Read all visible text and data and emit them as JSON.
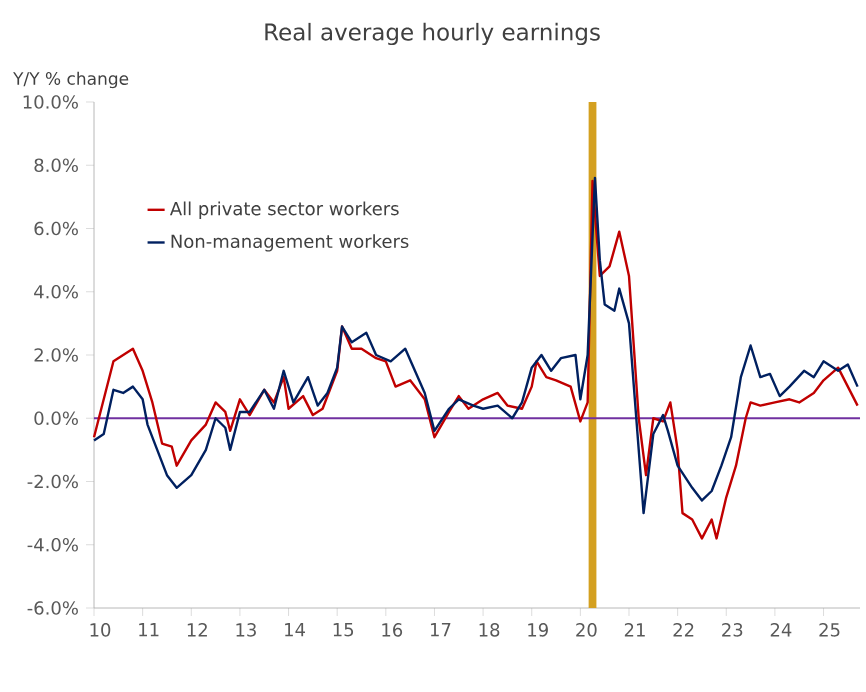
{
  "chart_data": {
    "type": "line",
    "title": "Real average hourly earnings",
    "ylabel": "Y/Y % change",
    "xlim": [
      10,
      25.75
    ],
    "xticks": [
      10,
      11,
      12,
      13,
      14,
      15,
      16,
      17,
      18,
      19,
      20,
      21,
      22,
      23,
      24,
      25
    ],
    "ylim": [
      -6,
      10
    ],
    "yticks": [
      {
        "value": -6,
        "label": "-6.0%"
      },
      {
        "value": -4,
        "label": "-4.0%"
      },
      {
        "value": -2,
        "label": "-2.0%"
      },
      {
        "value": 0,
        "label": "0.0%"
      },
      {
        "value": 2,
        "label": "2.0%"
      },
      {
        "value": 4,
        "label": "4.0%"
      },
      {
        "value": 6,
        "label": "6.0%"
      },
      {
        "value": 8,
        "label": "8.0%"
      },
      {
        "value": 10,
        "label": "10.0%"
      }
    ],
    "grid": false,
    "legend": "top left",
    "line_style": "solid",
    "ref_lines": [
      {
        "axis": "y",
        "value": 0,
        "color": "#7030a0"
      }
    ],
    "bands": [
      {
        "axis": "x",
        "from": 20.17,
        "to": 20.33,
        "color": "#d4a020"
      }
    ],
    "series": [
      {
        "name": "All private sector workers",
        "color": "#c00000",
        "x": [
          10.0,
          10.4,
          10.8,
          11.0,
          11.2,
          11.4,
          11.6,
          11.7,
          12.0,
          12.3,
          12.5,
          12.7,
          12.8,
          13.0,
          13.2,
          13.5,
          13.7,
          13.9,
          14.0,
          14.3,
          14.5,
          14.7,
          15.0,
          15.1,
          15.3,
          15.5,
          15.8,
          16.0,
          16.2,
          16.5,
          16.8,
          17.0,
          17.3,
          17.5,
          17.7,
          18.0,
          18.3,
          18.5,
          18.8,
          19.0,
          19.1,
          19.3,
          19.5,
          19.8,
          20.0,
          20.15,
          20.25,
          20.4,
          20.6,
          20.8,
          21.0,
          21.2,
          21.35,
          21.5,
          21.7,
          21.85,
          22.0,
          22.1,
          22.3,
          22.5,
          22.7,
          22.8,
          23.0,
          23.2,
          23.4,
          23.5,
          23.7,
          24.0,
          24.3,
          24.5,
          24.8,
          25.0,
          25.3,
          25.5,
          25.7
        ],
        "values": [
          -0.6,
          1.8,
          2.2,
          1.5,
          0.5,
          -0.8,
          -0.9,
          -1.5,
          -0.7,
          -0.2,
          0.5,
          0.2,
          -0.4,
          0.6,
          0.1,
          0.9,
          0.5,
          1.3,
          0.3,
          0.7,
          0.1,
          0.3,
          1.5,
          2.9,
          2.2,
          2.2,
          1.9,
          1.8,
          1.0,
          1.2,
          0.6,
          -0.6,
          0.2,
          0.7,
          0.3,
          0.6,
          0.8,
          0.4,
          0.3,
          1.0,
          1.8,
          1.3,
          1.2,
          1.0,
          -0.1,
          0.5,
          7.5,
          4.5,
          4.8,
          5.9,
          4.5,
          0.0,
          -1.8,
          0.0,
          -0.1,
          0.5,
          -1.0,
          -3.0,
          -3.2,
          -3.8,
          -3.2,
          -3.8,
          -2.5,
          -1.5,
          0.0,
          0.5,
          0.4,
          0.5,
          0.6,
          0.5,
          0.8,
          1.2,
          1.6,
          1.0,
          0.4
        ]
      },
      {
        "name": "Non-management workers",
        "color": "#002060",
        "x": [
          10.0,
          10.2,
          10.4,
          10.6,
          10.8,
          11.0,
          11.1,
          11.3,
          11.5,
          11.7,
          12.0,
          12.3,
          12.5,
          12.7,
          12.8,
          13.0,
          13.2,
          13.5,
          13.7,
          13.9,
          14.1,
          14.4,
          14.6,
          14.8,
          15.0,
          15.1,
          15.3,
          15.6,
          15.8,
          16.1,
          16.4,
          16.6,
          16.8,
          17.0,
          17.3,
          17.5,
          17.8,
          18.0,
          18.3,
          18.6,
          18.8,
          19.0,
          19.2,
          19.4,
          19.6,
          19.9,
          20.0,
          20.15,
          20.3,
          20.4,
          20.5,
          20.7,
          20.8,
          21.0,
          21.15,
          21.3,
          21.5,
          21.7,
          21.8,
          22.0,
          22.3,
          22.5,
          22.7,
          22.9,
          23.1,
          23.3,
          23.5,
          23.7,
          23.9,
          24.1,
          24.3,
          24.6,
          24.8,
          25.0,
          25.3,
          25.5,
          25.7
        ],
        "values": [
          -0.7,
          -0.5,
          0.9,
          0.8,
          1.0,
          0.6,
          -0.2,
          -1.0,
          -1.8,
          -2.2,
          -1.8,
          -1.0,
          0.0,
          -0.3,
          -1.0,
          0.2,
          0.2,
          0.9,
          0.3,
          1.5,
          0.5,
          1.3,
          0.4,
          0.8,
          1.6,
          2.9,
          2.4,
          2.7,
          2.0,
          1.8,
          2.2,
          1.5,
          0.8,
          -0.4,
          0.3,
          0.6,
          0.4,
          0.3,
          0.4,
          0.0,
          0.5,
          1.6,
          2.0,
          1.5,
          1.9,
          2.0,
          0.6,
          2.0,
          7.6,
          5.0,
          3.6,
          3.4,
          4.1,
          3.0,
          0.0,
          -3.0,
          -0.5,
          0.1,
          -0.4,
          -1.5,
          -2.2,
          -2.6,
          -2.3,
          -1.5,
          -0.6,
          1.3,
          2.3,
          1.3,
          1.4,
          0.7,
          1.0,
          1.5,
          1.3,
          1.8,
          1.5,
          1.7,
          1.0
        ]
      }
    ]
  }
}
